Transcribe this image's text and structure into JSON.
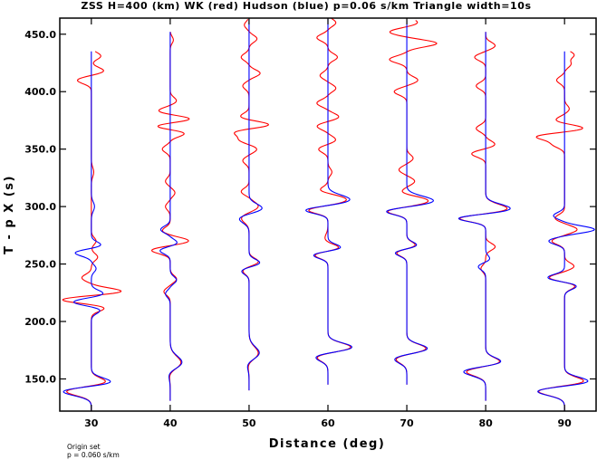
{
  "chart_data": {
    "type": "line",
    "title": "ZSS H=400 (km) WK (red) Hudson (blue) p=0.06 s/km Triangle width=10s",
    "xlabel": "Distance (deg)",
    "ylabel": "T - p X (s)",
    "xlim": [
      26,
      94
    ],
    "ylim": [
      122,
      464
    ],
    "x_ticks": [
      30,
      40,
      50,
      60,
      70,
      80,
      90
    ],
    "y_ticks": [
      150.0,
      200.0,
      250.0,
      300.0,
      350.0,
      400.0,
      450.0
    ],
    "x_tick_labels": [
      "30",
      "40",
      "50",
      "60",
      "70",
      "80",
      "90"
    ],
    "y_tick_labels": [
      "150.0",
      "200.0",
      "250.0",
      "300.0",
      "350.0",
      "400.0",
      "450.0"
    ],
    "grid": false,
    "series": [
      {
        "name": "WK",
        "color": "#ff0000",
        "traces": [
          {
            "distance": 30,
            "start": 122,
            "end": 435,
            "pulses": [
              [
                140,
                -3.8,
                4
              ],
              [
                146,
                2.6,
                4
              ],
              [
                212,
                1.8,
                3
              ],
              [
                219,
                -4,
                3
              ],
              [
                226,
                4,
                3
              ],
              [
                238,
                -1.2,
                3
              ],
              [
                256,
                0.8,
                3
              ],
              [
                270,
                0.6,
                3
              ],
              [
                330,
                0.3,
                4
              ],
              [
                410,
                -1.8,
                3
              ],
              [
                418,
                1.6,
                3
              ],
              [
                431,
                1.2,
                3
              ]
            ]
          },
          {
            "distance": 40,
            "start": 131,
            "end": 452,
            "pulses": [
              [
                157,
                -0.6,
                5
              ],
              [
                163,
                1.6,
                6
              ],
              [
                226,
                -0.8,
                3
              ],
              [
                237,
                0.8,
                3
              ],
              [
                262,
                -2.4,
                3
              ],
              [
                270,
                2.4,
                3
              ],
              [
                279,
                -1,
                3
              ],
              [
                300,
                -0.6,
                3
              ],
              [
                312,
                0.6,
                3
              ],
              [
                322,
                -0.6,
                3
              ],
              [
                350,
                -1,
                3
              ],
              [
                364,
                2,
                3
              ],
              [
                370,
                -2.2,
                3
              ],
              [
                376,
                2.8,
                3
              ],
              [
                383,
                -1.6,
                3
              ],
              [
                392,
                0.8,
                3
              ],
              [
                445,
                0.4,
                3
              ]
            ]
          },
          {
            "distance": 50,
            "start": 140,
            "end": 463,
            "pulses": [
              [
                165,
                -0.6,
                5
              ],
              [
                171,
                1.4,
                6
              ],
              [
                244,
                -0.8,
                3
              ],
              [
                252,
                1.2,
                3
              ],
              [
                290,
                -1,
                4
              ],
              [
                300,
                1.2,
                4
              ],
              [
                313,
                -1,
                3
              ],
              [
                340,
                -0.8,
                3
              ],
              [
                350,
                1,
                3
              ],
              [
                358,
                -1.2,
                3
              ],
              [
                365,
                -2,
                3
              ],
              [
                371,
                2.8,
                3
              ],
              [
                378,
                -1.2,
                3
              ],
              [
                405,
                -0.8,
                3
              ],
              [
                416,
                1.4,
                3
              ],
              [
                430,
                -1,
                3
              ],
              [
                446,
                1,
                3
              ],
              [
                458,
                -0.6,
                3
              ]
            ]
          },
          {
            "distance": 60,
            "start": 145,
            "end": 465,
            "pulses": [
              [
                170,
                -1.8,
                4
              ],
              [
                177,
                3.2,
                4
              ],
              [
                258,
                -1.8,
                3
              ],
              [
                264,
                1.6,
                3
              ],
              [
                272,
                -0.4,
                4
              ],
              [
                297,
                -2.6,
                3
              ],
              [
                306,
                2.4,
                4
              ],
              [
                314,
                -1.2,
                3
              ],
              [
                330,
                0.5,
                3
              ],
              [
                350,
                -1.2,
                3
              ],
              [
                358,
                1,
                3
              ],
              [
                370,
                -1.4,
                3
              ],
              [
                378,
                1.4,
                3
              ],
              [
                390,
                -1.4,
                3
              ],
              [
                403,
                1,
                3
              ],
              [
                414,
                -1,
                3
              ],
              [
                430,
                1.2,
                3
              ],
              [
                447,
                -1.4,
                3
              ],
              [
                460,
                1,
                3
              ]
            ]
          },
          {
            "distance": 70,
            "start": 145,
            "end": 462,
            "pulses": [
              [
                168,
                -1.6,
                4
              ],
              [
                176,
                2.6,
                4
              ],
              [
                260,
                -1.4,
                3
              ],
              [
                266,
                1.2,
                3
              ],
              [
                296,
                -2.6,
                3
              ],
              [
                305,
                2.8,
                4
              ],
              [
                312,
                -1,
                3
              ],
              [
                322,
                1,
                3
              ],
              [
                332,
                -1,
                3
              ],
              [
                342,
                0.8,
                3
              ],
              [
                400,
                -1.6,
                3
              ],
              [
                410,
                1.4,
                3
              ],
              [
                428,
                -2.2,
                3
              ],
              [
                442,
                3.8,
                3
              ],
              [
                452,
                -2.2,
                3
              ],
              [
                460,
                1.4,
                3
              ]
            ]
          },
          {
            "distance": 80,
            "start": 131,
            "end": 452,
            "pulses": [
              [
                157,
                -2.8,
                4
              ],
              [
                164,
                2.2,
                4
              ],
              [
                246,
                -0.6,
                3
              ],
              [
                265,
                1.2,
                3
              ],
              [
                290,
                -3.6,
                3
              ],
              [
                298,
                2.8,
                4
              ],
              [
                346,
                -1.8,
                3
              ],
              [
                354,
                1.2,
                3
              ],
              [
                368,
                -1.2,
                3
              ],
              [
                405,
                -1.2,
                3
              ],
              [
                430,
                -1.4,
                3
              ],
              [
                440,
                1.2,
                3
              ]
            ]
          },
          {
            "distance": 90,
            "start": 122,
            "end": 435,
            "pulses": [
              [
                140,
                -3.8,
                4
              ],
              [
                147,
                3,
                4
              ],
              [
                231,
                1.4,
                3
              ],
              [
                238,
                -2,
                3
              ],
              [
                248,
                1.2,
                3
              ],
              [
                270,
                -1.6,
                3
              ],
              [
                280,
                1.6,
                3
              ],
              [
                290,
                -1.2,
                3
              ],
              [
                354,
                -1.4,
                3
              ],
              [
                361,
                -3.6,
                3
              ],
              [
                368,
                2.6,
                3
              ],
              [
                375,
                -1.2,
                3
              ],
              [
                385,
                0.6,
                3
              ],
              [
                410,
                -1,
                3
              ],
              [
                424,
                0.8,
                3
              ],
              [
                432,
                1.2,
                3
              ]
            ]
          }
        ]
      },
      {
        "name": "Hudson",
        "color": "#0000ff",
        "traces": [
          {
            "distance": 30,
            "start": 122,
            "end": 435,
            "pulses": [
              [
                140,
                -4.4,
                4
              ],
              [
                146,
                3.4,
                4
              ],
              [
                210,
                1.2,
                3
              ],
              [
                217,
                -2.4,
                3
              ],
              [
                224,
                1.6,
                3
              ],
              [
                246,
                0.6,
                3
              ],
              [
                260,
                -2.2,
                3
              ],
              [
                266,
                1.4,
                3
              ],
              [
                300,
                0.4,
                4
              ]
            ]
          },
          {
            "distance": 40,
            "start": 131,
            "end": 452,
            "pulses": [
              [
                157,
                -0.8,
                5
              ],
              [
                163,
                1.8,
                6
              ],
              [
                224,
                -0.6,
                3
              ],
              [
                236,
                0.8,
                3
              ],
              [
                262,
                -1.4,
                3
              ],
              [
                268,
                1,
                3
              ],
              [
                280,
                -1.2,
                3
              ]
            ]
          },
          {
            "distance": 50,
            "start": 140,
            "end": 463,
            "pulses": [
              [
                165,
                -0.8,
                5
              ],
              [
                171,
                1.6,
                6
              ],
              [
                244,
                -1,
                3
              ],
              [
                251,
                1.4,
                3
              ],
              [
                290,
                -1.4,
                4
              ],
              [
                298,
                1.8,
                4
              ]
            ]
          },
          {
            "distance": 60,
            "start": 145,
            "end": 465,
            "pulses": [
              [
                170,
                -2,
                4
              ],
              [
                177,
                3.4,
                4
              ],
              [
                258,
                -2,
                3
              ],
              [
                264,
                1.8,
                3
              ],
              [
                297,
                -3,
                3
              ],
              [
                306,
                2.8,
                4
              ]
            ]
          },
          {
            "distance": 70,
            "start": 145,
            "end": 462,
            "pulses": [
              [
                168,
                -1.8,
                4
              ],
              [
                176,
                2.8,
                4
              ],
              [
                260,
                -1.6,
                3
              ],
              [
                266,
                1.4,
                3
              ],
              [
                296,
                -2.8,
                3
              ],
              [
                305,
                3.4,
                4
              ]
            ]
          },
          {
            "distance": 80,
            "start": 131,
            "end": 452,
            "pulses": [
              [
                157,
                -3.2,
                4
              ],
              [
                164,
                2.4,
                4
              ],
              [
                248,
                -1,
                3
              ],
              [
                254,
                0.6,
                3
              ],
              [
                290,
                -3.8,
                3
              ],
              [
                298,
                3.2,
                4
              ]
            ]
          },
          {
            "distance": 90,
            "start": 122,
            "end": 435,
            "pulses": [
              [
                140,
                -4,
                4
              ],
              [
                147,
                3.6,
                4
              ],
              [
                231,
                1.6,
                3
              ],
              [
                238,
                -2.2,
                3
              ],
              [
                270,
                -2,
                3
              ],
              [
                280,
                3.8,
                3
              ],
              [
                292,
                -1.4,
                3
              ]
            ]
          }
        ]
      }
    ]
  },
  "notes": {
    "line1": "Origin set",
    "line2": "p = 0.060 s/km"
  }
}
